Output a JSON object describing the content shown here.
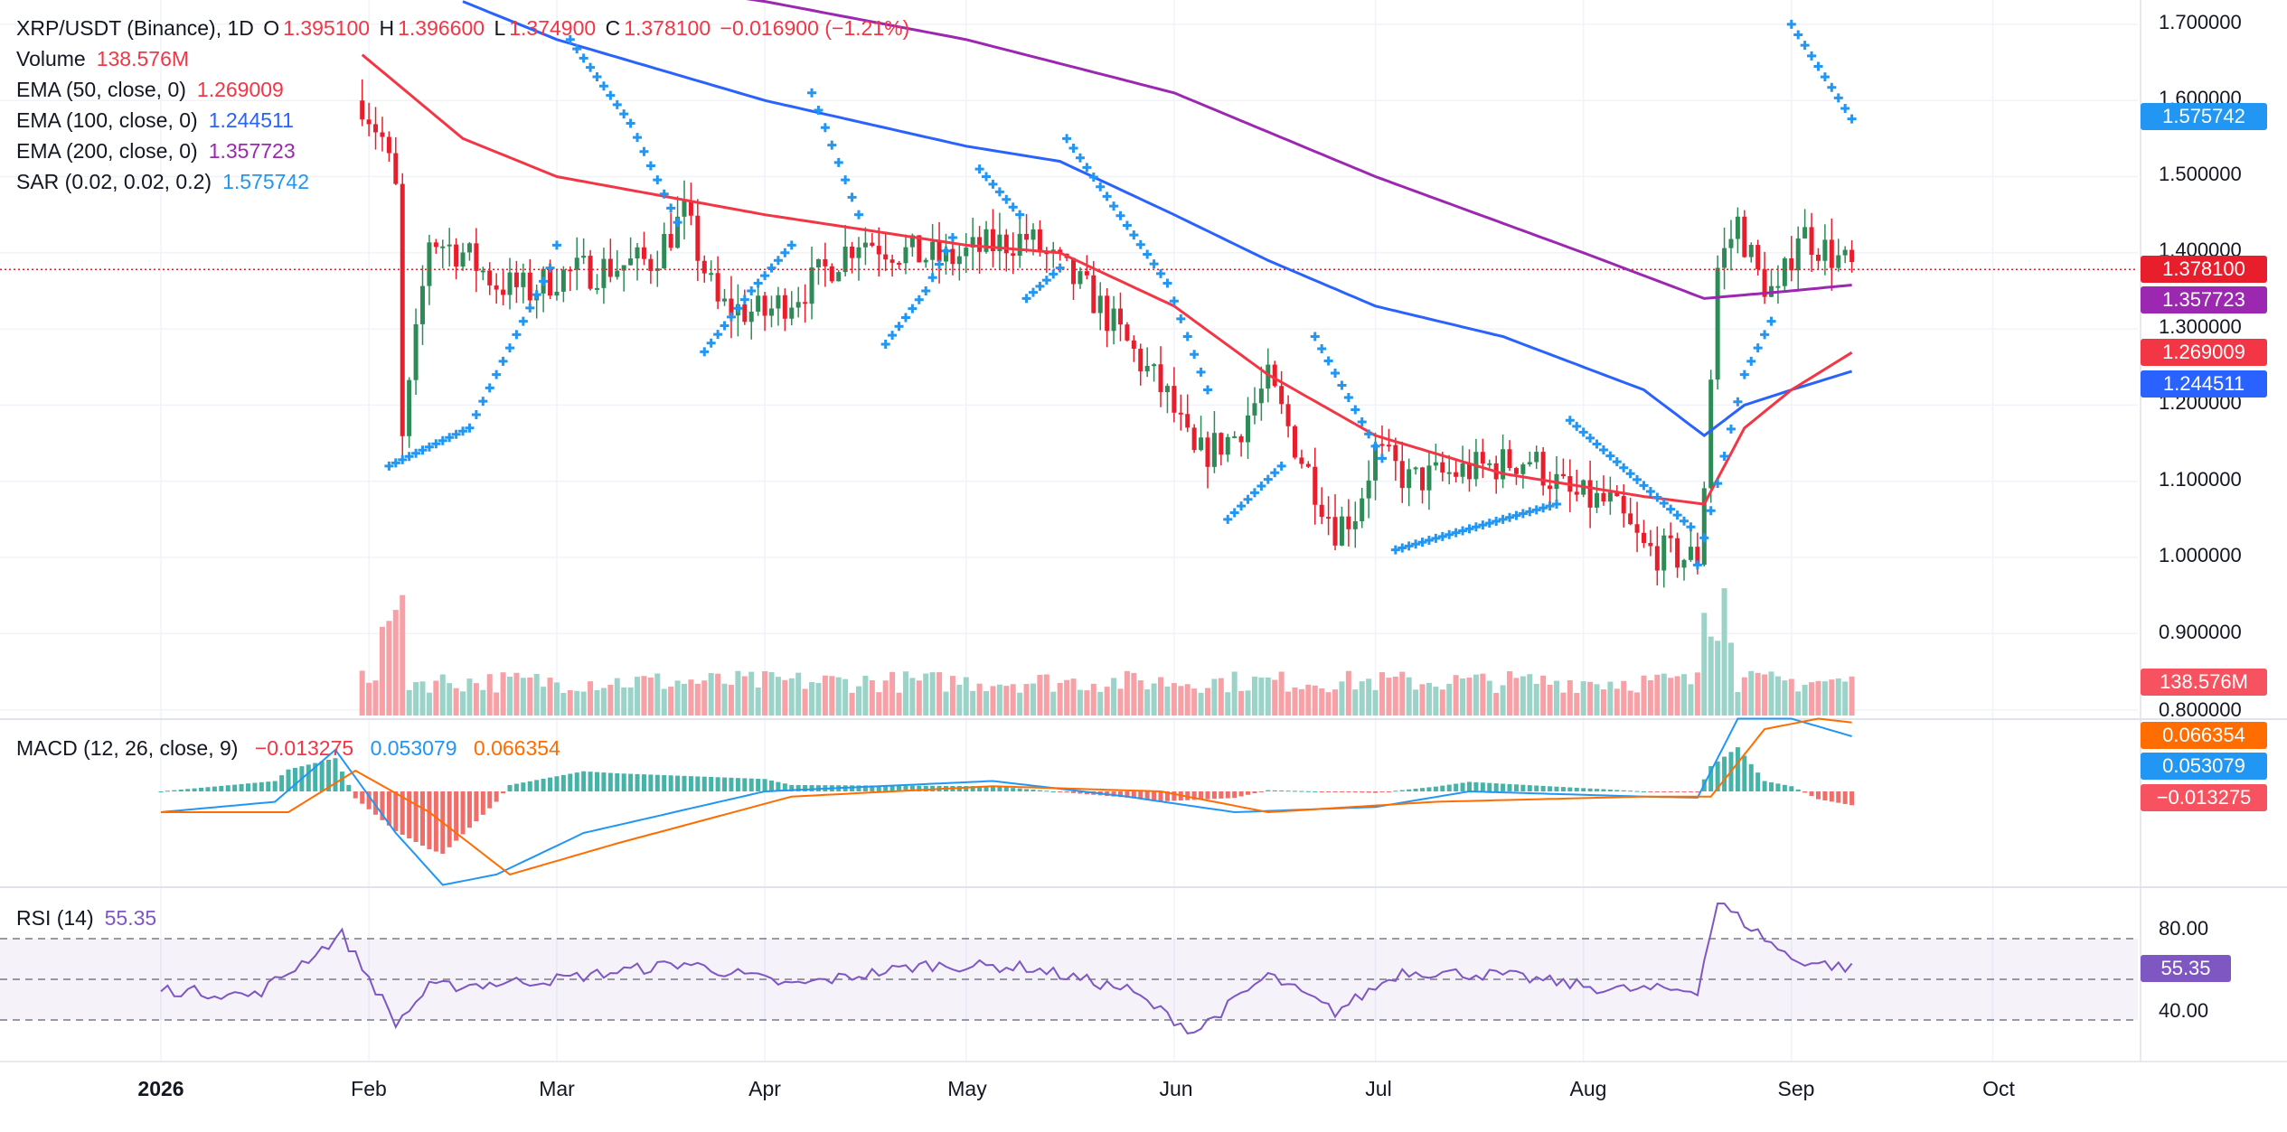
{
  "header": {
    "symbol": "XRP/USDT (Binance), 1D",
    "o_label": "O",
    "o_value": "1.395100",
    "h_label": "H",
    "h_value": "1.396600",
    "l_label": "L",
    "l_value": "1.374900",
    "c_label": "C",
    "c_value": "1.378100",
    "change": "−0.016900 (−1.21%)"
  },
  "legend": {
    "volume_label": "Volume",
    "volume_value": "138.576M",
    "ema50_label": "EMA (50, close, 0)",
    "ema50_value": "1.269009",
    "ema100_label": "EMA (100, close, 0)",
    "ema100_value": "1.244511",
    "ema200_label": "EMA (200, close, 0)",
    "ema200_value": "1.357723",
    "sar_label": "SAR (0.02, 0.02, 0.2)",
    "sar_value": "1.575742",
    "macd_label": "MACD (12, 26, close, 9)",
    "macd_hist": "−0.013275",
    "macd_line": "0.053079",
    "macd_signal": "0.066354",
    "rsi_label": "RSI (14)",
    "rsi_value": "55.35"
  },
  "price_axis": {
    "ticks": [
      "1.700000",
      "1.600000",
      "1.500000",
      "1.400000",
      "1.300000",
      "1.200000",
      "1.100000",
      "1.000000",
      "0.900000",
      "0.800000"
    ]
  },
  "rsi_axis": {
    "ticks": [
      "80.00",
      "40.00"
    ]
  },
  "time_axis": {
    "ticks": [
      "2026",
      "Feb",
      "Mar",
      "Apr",
      "May",
      "Jun",
      "Jul",
      "Aug",
      "Sep",
      "Oct"
    ]
  },
  "badges": {
    "sar": "1.575742",
    "close": "1.378100",
    "ema200": "1.357723",
    "ema50": "1.269009",
    "ema100": "1.244511",
    "volume": "138.576M",
    "macd_signal": "0.066354",
    "macd_line": "0.053079",
    "macd_hist": "−0.013275",
    "rsi": "55.35"
  },
  "colors": {
    "up": "#26a69a",
    "down": "#ef5350",
    "up_candle": "#2e8b57",
    "down_candle": "#e91e2d",
    "ema50": "#f23645",
    "ema100": "#2962ff",
    "ema200": "#9c27b0",
    "sar": "#2196f3",
    "macd": "#2196f3",
    "signal": "#ff6d00",
    "rsi": "#7e57c2",
    "text": "#131722"
  },
  "chart_data": {
    "type": "candlestick",
    "title": "XRP/USDT (Binance), 1D",
    "x_range": [
      "2025-12-31",
      "2026-10-12"
    ],
    "price_ylim": [
      0.78,
      1.73
    ],
    "close_path": {
      "dates": [
        "2026-01-31",
        "2026-02-03",
        "2026-02-05",
        "2026-02-06",
        "2026-02-10",
        "2026-02-15",
        "2026-02-20",
        "2026-02-25",
        "2026-03-01",
        "2026-03-08",
        "2026-03-15",
        "2026-03-20",
        "2026-03-25",
        "2026-04-01",
        "2026-04-08",
        "2026-04-15",
        "2026-04-22",
        "2026-04-28",
        "2026-05-05",
        "2026-05-10",
        "2026-05-15",
        "2026-05-20",
        "2026-05-25",
        "2026-05-31",
        "2026-06-04",
        "2026-06-10",
        "2026-06-15",
        "2026-06-20",
        "2026-06-25",
        "2026-06-28",
        "2026-07-01",
        "2026-07-06",
        "2026-07-12",
        "2026-07-18",
        "2026-07-24",
        "2026-07-30",
        "2026-08-05",
        "2026-08-10",
        "2026-08-16",
        "2026-08-18",
        "2026-08-19",
        "2026-08-21",
        "2026-08-24",
        "2026-08-27",
        "2026-08-30",
        "2026-09-02",
        "2026-09-05",
        "2026-09-10"
      ],
      "values": [
        1.6,
        1.55,
        1.48,
        1.15,
        1.42,
        1.4,
        1.36,
        1.35,
        1.37,
        1.38,
        1.39,
        1.45,
        1.33,
        1.32,
        1.36,
        1.42,
        1.4,
        1.39,
        1.41,
        1.42,
        1.38,
        1.34,
        1.28,
        1.21,
        1.13,
        1.16,
        1.23,
        1.13,
        1.04,
        1.06,
        1.14,
        1.1,
        1.11,
        1.12,
        1.13,
        1.08,
        1.07,
        1.01,
        1.0,
        1.0,
        1.1,
        1.38,
        1.44,
        1.37,
        1.34,
        1.43,
        1.41,
        1.378
      ]
    },
    "ema50": {
      "dates": [
        "2026-01-31",
        "2026-02-15",
        "2026-03-01",
        "2026-04-01",
        "2026-05-01",
        "2026-05-15",
        "2026-06-01",
        "2026-06-15",
        "2026-07-01",
        "2026-07-20",
        "2026-08-10",
        "2026-08-19",
        "2026-08-25",
        "2026-09-01",
        "2026-09-10"
      ],
      "values": [
        1.66,
        1.55,
        1.5,
        1.45,
        1.41,
        1.4,
        1.33,
        1.24,
        1.16,
        1.11,
        1.08,
        1.07,
        1.17,
        1.22,
        1.269
      ]
    },
    "ema100": {
      "dates": [
        "2026-02-15",
        "2026-03-01",
        "2026-04-01",
        "2026-05-01",
        "2026-05-15",
        "2026-06-01",
        "2026-06-15",
        "2026-07-01",
        "2026-07-20",
        "2026-08-10",
        "2026-08-19",
        "2026-08-25",
        "2026-09-01",
        "2026-09-10"
      ],
      "values": [
        1.73,
        1.68,
        1.6,
        1.54,
        1.52,
        1.45,
        1.39,
        1.33,
        1.29,
        1.22,
        1.16,
        1.2,
        1.22,
        1.2445
      ]
    },
    "ema200": {
      "dates": [
        "2026-03-01",
        "2026-04-01",
        "2026-05-01",
        "2026-06-01",
        "2026-07-01",
        "2026-08-01",
        "2026-08-19",
        "2026-09-01",
        "2026-09-10"
      ],
      "values": [
        1.77,
        1.73,
        1.68,
        1.61,
        1.5,
        1.4,
        1.34,
        1.35,
        1.3577
      ]
    },
    "volume_last": "138.576M",
    "macd": {
      "line": 0.053079,
      "signal": 0.066354,
      "histogram": -0.013275
    },
    "rsi": {
      "last": 55.35,
      "bands": [
        70,
        50,
        30
      ],
      "ticks": [
        80,
        40
      ]
    },
    "sar_last": 1.575742
  }
}
